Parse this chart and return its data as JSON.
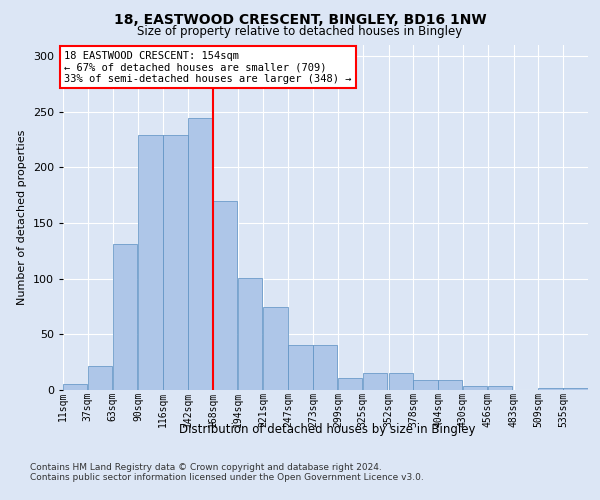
{
  "title1": "18, EASTWOOD CRESCENT, BINGLEY, BD16 1NW",
  "title2": "Size of property relative to detached houses in Bingley",
  "xlabel": "Distribution of detached houses by size in Bingley",
  "ylabel": "Number of detached properties",
  "categories": [
    "11sqm",
    "37sqm",
    "63sqm",
    "90sqm",
    "116sqm",
    "142sqm",
    "168sqm",
    "194sqm",
    "221sqm",
    "247sqm",
    "273sqm",
    "299sqm",
    "325sqm",
    "352sqm",
    "378sqm",
    "404sqm",
    "430sqm",
    "456sqm",
    "483sqm",
    "509sqm",
    "535sqm"
  ],
  "bar_heights": [
    5,
    22,
    131,
    229,
    229,
    244,
    170,
    101,
    75,
    40,
    40,
    11,
    15,
    15,
    9,
    9,
    4,
    4,
    0,
    2,
    2
  ],
  "x_vals": [
    11,
    37,
    63,
    90,
    116,
    142,
    168,
    194,
    221,
    247,
    273,
    299,
    325,
    352,
    378,
    404,
    430,
    456,
    483,
    509,
    535
  ],
  "bar_color": "#aec6e8",
  "bar_edge_color": "#5a8fc2",
  "vline_color": "red",
  "vline_x": 168,
  "annotation_text": "18 EASTWOOD CRESCENT: 154sqm\n← 67% of detached houses are smaller (709)\n33% of semi-detached houses are larger (348) →",
  "bg_color": "#dce6f5",
  "plot_bg_color": "#dce6f5",
  "grid_color": "white",
  "footer": "Contains HM Land Registry data © Crown copyright and database right 2024.\nContains public sector information licensed under the Open Government Licence v3.0.",
  "ylim": [
    0,
    310
  ],
  "bin_width": 26,
  "yticks": [
    0,
    50,
    100,
    150,
    200,
    250,
    300
  ]
}
